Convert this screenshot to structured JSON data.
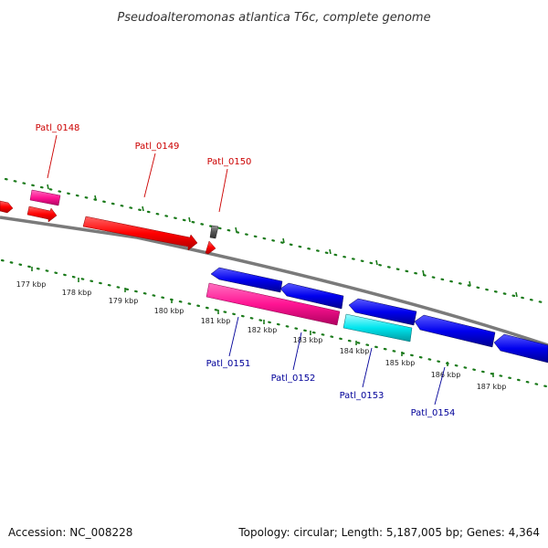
{
  "title": "Pseudoalteromonas atlantica T6c, complete genome",
  "footer": {
    "accession": "Accession: NC_008228",
    "summary": "Topology: circular; Length: 5,187,005 bp; Genes: 4,364"
  },
  "kbp_labels": [
    "177 kbp",
    "178 kbp",
    "179 kbp",
    "180 kbp",
    "181 kbp",
    "182 kbp",
    "183 kbp",
    "184 kbp",
    "185 kbp",
    "186 kbp",
    "187 kbp"
  ],
  "gene_labels": {
    "p148": "Patl_0148",
    "p149": "Patl_0149",
    "p150": "Patl_0150",
    "p151": "Patl_0151",
    "p152": "Patl_0152",
    "p153": "Patl_0153",
    "p154": "Patl_0154"
  },
  "colors": {
    "forward_label": "#cc0000",
    "reverse_label": "#000099",
    "forward_gene": "#ff0000",
    "reverse_gene": "#0000ee",
    "rna_gene": "#ff1493",
    "cyan_gene": "#00e5ee",
    "grey_gene": "#555555",
    "backbone": "#808080",
    "tick": "#1a7a1a"
  }
}
